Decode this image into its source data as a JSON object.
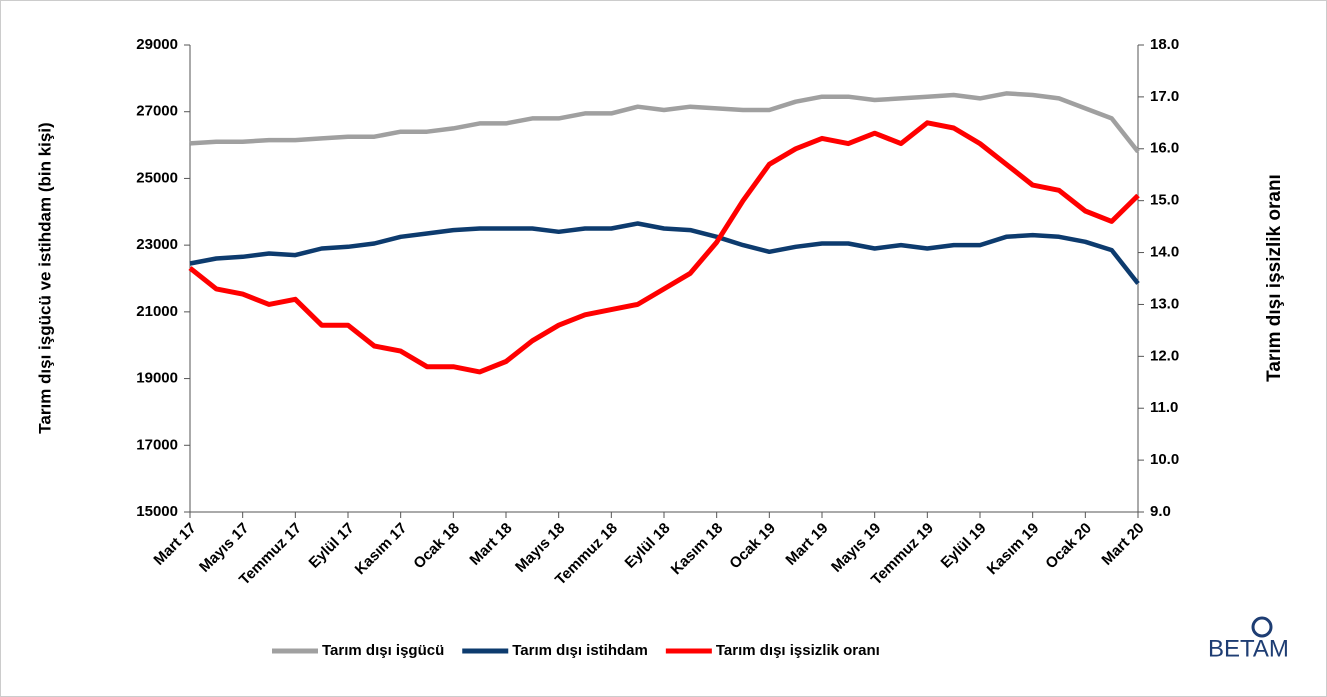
{
  "chart_data": {
    "type": "line",
    "y_label": "Tarım dışı işgücü ve istihdam (bin kişi)",
    "y2_label": "Tarım dışı işsizlik oranı",
    "logo": "BETAM",
    "categories": [
      "Mart 17",
      null,
      "Mayıs 17",
      null,
      "Temmuz 17",
      null,
      "Eylül 17",
      null,
      "Kasım 17",
      null,
      "Ocak 18",
      null,
      "Mart 18",
      null,
      "Mayıs 18",
      null,
      "Temmuz 18",
      null,
      "Eylül 18",
      null,
      "Kasım 18",
      null,
      "Ocak 19",
      null,
      "Mart 19",
      null,
      "Mayıs 19",
      null,
      "Temmuz 19",
      null,
      "Eylül 19",
      null,
      "Kasım 19",
      null,
      "Ocak 20",
      null,
      "Mart 20"
    ],
    "series": [
      {
        "name": "Tarım dışı işgücü",
        "color": "#a0a0a0",
        "axis": "y",
        "values": [
          26050,
          26100,
          26100,
          26150,
          26150,
          26200,
          26250,
          26250,
          26400,
          26400,
          26500,
          26650,
          26650,
          26800,
          26800,
          26950,
          26950,
          27150,
          27050,
          27150,
          27100,
          27050,
          27050,
          27300,
          27450,
          27450,
          27350,
          27400,
          27450,
          27500,
          27400,
          27550,
          27500,
          27400,
          27100,
          26800,
          25800
        ]
      },
      {
        "name": "Tarım dışı istihdam",
        "color": "#0d3b6e",
        "axis": "y",
        "values": [
          22450,
          22600,
          22650,
          22750,
          22700,
          22900,
          22950,
          23050,
          23250,
          23350,
          23450,
          23500,
          23500,
          23500,
          23400,
          23500,
          23500,
          23650,
          23500,
          23450,
          23250,
          23000,
          22800,
          22950,
          23050,
          23050,
          22900,
          23000,
          22900,
          23000,
          23000,
          23250,
          23300,
          23250,
          23100,
          22850,
          21850
        ]
      },
      {
        "name": "Tarım dışı işsizlik oranı",
        "color": "#ff0000",
        "axis": "y2",
        "values": [
          13.7,
          13.3,
          13.2,
          13.0,
          13.1,
          12.6,
          12.6,
          12.2,
          12.1,
          11.8,
          11.8,
          11.7,
          11.9,
          12.3,
          12.6,
          12.8,
          12.9,
          13.0,
          13.3,
          13.6,
          14.2,
          15.0,
          15.7,
          16.0,
          16.2,
          16.1,
          16.3,
          16.1,
          16.5,
          16.4,
          16.1,
          15.7,
          15.3,
          15.2,
          14.8,
          14.6,
          15.1
        ]
      }
    ],
    "ylim": [
      15000,
      29000
    ],
    "yticks": [
      15000,
      17000,
      19000,
      21000,
      23000,
      25000,
      27000,
      29000
    ],
    "y2lim": [
      9,
      18
    ],
    "y2ticks": [
      {
        "value": 9,
        "label": "9.0"
      },
      {
        "value": 10,
        "label": "10.0"
      },
      {
        "value": 11,
        "label": "11.0"
      },
      {
        "value": 12,
        "label": "12.0"
      },
      {
        "value": 13,
        "label": "13.0"
      },
      {
        "value": 14,
        "label": "14.0"
      },
      {
        "value": 15,
        "label": "15.0"
      },
      {
        "value": 16,
        "label": "16.0"
      },
      {
        "value": 17,
        "label": "17.0"
      },
      {
        "value": 18,
        "label": "18.0"
      }
    ],
    "grid": false,
    "legend": "bottom"
  }
}
